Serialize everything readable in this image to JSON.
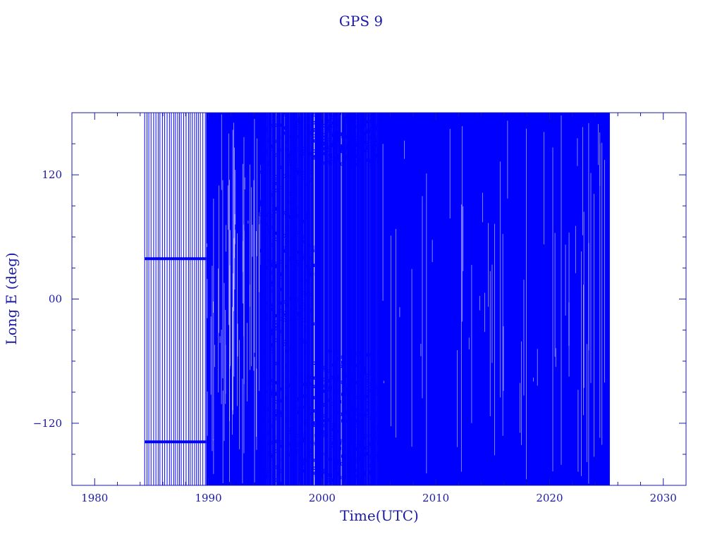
{
  "chart_data": {
    "type": "line",
    "title": "GPS 9",
    "xlabel": "Time(UTC)",
    "ylabel": "Long E (deg)",
    "xlim": [
      1978,
      2032
    ],
    "ylim": [
      -180,
      180
    ],
    "xticks": [
      1980,
      1990,
      2000,
      2010,
      2020,
      2030
    ],
    "xtick_labels": [
      "1980",
      "1990",
      "2000",
      "2010",
      "2020",
      "2030"
    ],
    "yticks": [
      120,
      0,
      -120
    ],
    "ytick_labels": [
      "120",
      "00",
      "−120"
    ],
    "x_range": [
      1984.4,
      2025.3
    ],
    "series_color": "#0000ff",
    "axis_color": "#1a1aa6",
    "segments": [
      {
        "x_start": 1984.4,
        "x_end": 1989.8,
        "y_min": -180,
        "y_max": 180,
        "density": "vertical-sweep",
        "bands": [
          39,
          -138
        ]
      },
      {
        "x_start": 1989.8,
        "x_end": 1994.6,
        "y_min": -180,
        "y_max": 180,
        "density": "solid"
      },
      {
        "x_start": 1994.6,
        "x_end": 2005.0,
        "y_min": -180,
        "y_max": 180,
        "density": "scattered",
        "hollow_region": {
          "x": [
            1999.2,
            2005.0
          ],
          "y": [
            -50,
            130
          ]
        }
      },
      {
        "x_start": 2005.0,
        "x_end": 2025.3,
        "y_min": -180,
        "y_max": 180,
        "density": "solid"
      }
    ]
  }
}
